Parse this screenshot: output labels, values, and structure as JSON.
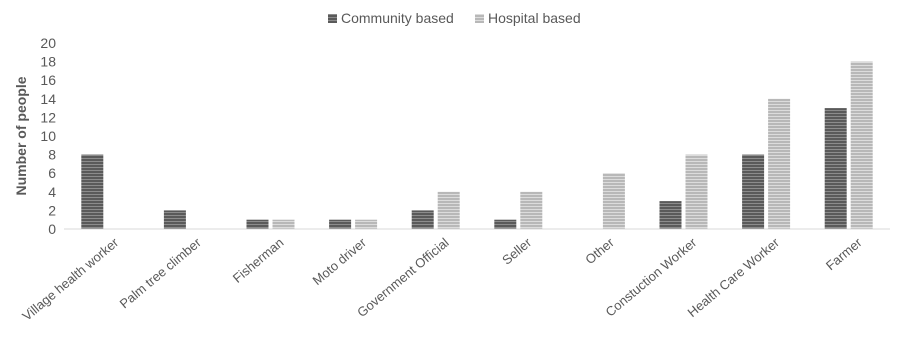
{
  "chart_data": {
    "type": "bar",
    "title": "",
    "xlabel": "",
    "ylabel": "Number of people",
    "ylim": [
      0,
      20
    ],
    "yticks": [
      0,
      2,
      4,
      6,
      8,
      10,
      12,
      14,
      16,
      18,
      20
    ],
    "grid": false,
    "legend_position": "top",
    "categories": [
      "Village health worker",
      "Palm tree climber",
      "Fisherman",
      "Moto driver",
      "Government Official",
      "Seller",
      "Other",
      "Constuction Worker",
      "Health Care Worker",
      "Farmer"
    ],
    "series": [
      {
        "name": "Community based",
        "color": "#6b6b6b",
        "values": [
          8,
          2,
          1,
          1,
          2,
          1,
          0,
          3,
          8,
          13
        ]
      },
      {
        "name": "Hospital based",
        "color": "#c8c8c8",
        "values": [
          0,
          0,
          1,
          1,
          4,
          4,
          6,
          8,
          14,
          18
        ]
      }
    ]
  }
}
